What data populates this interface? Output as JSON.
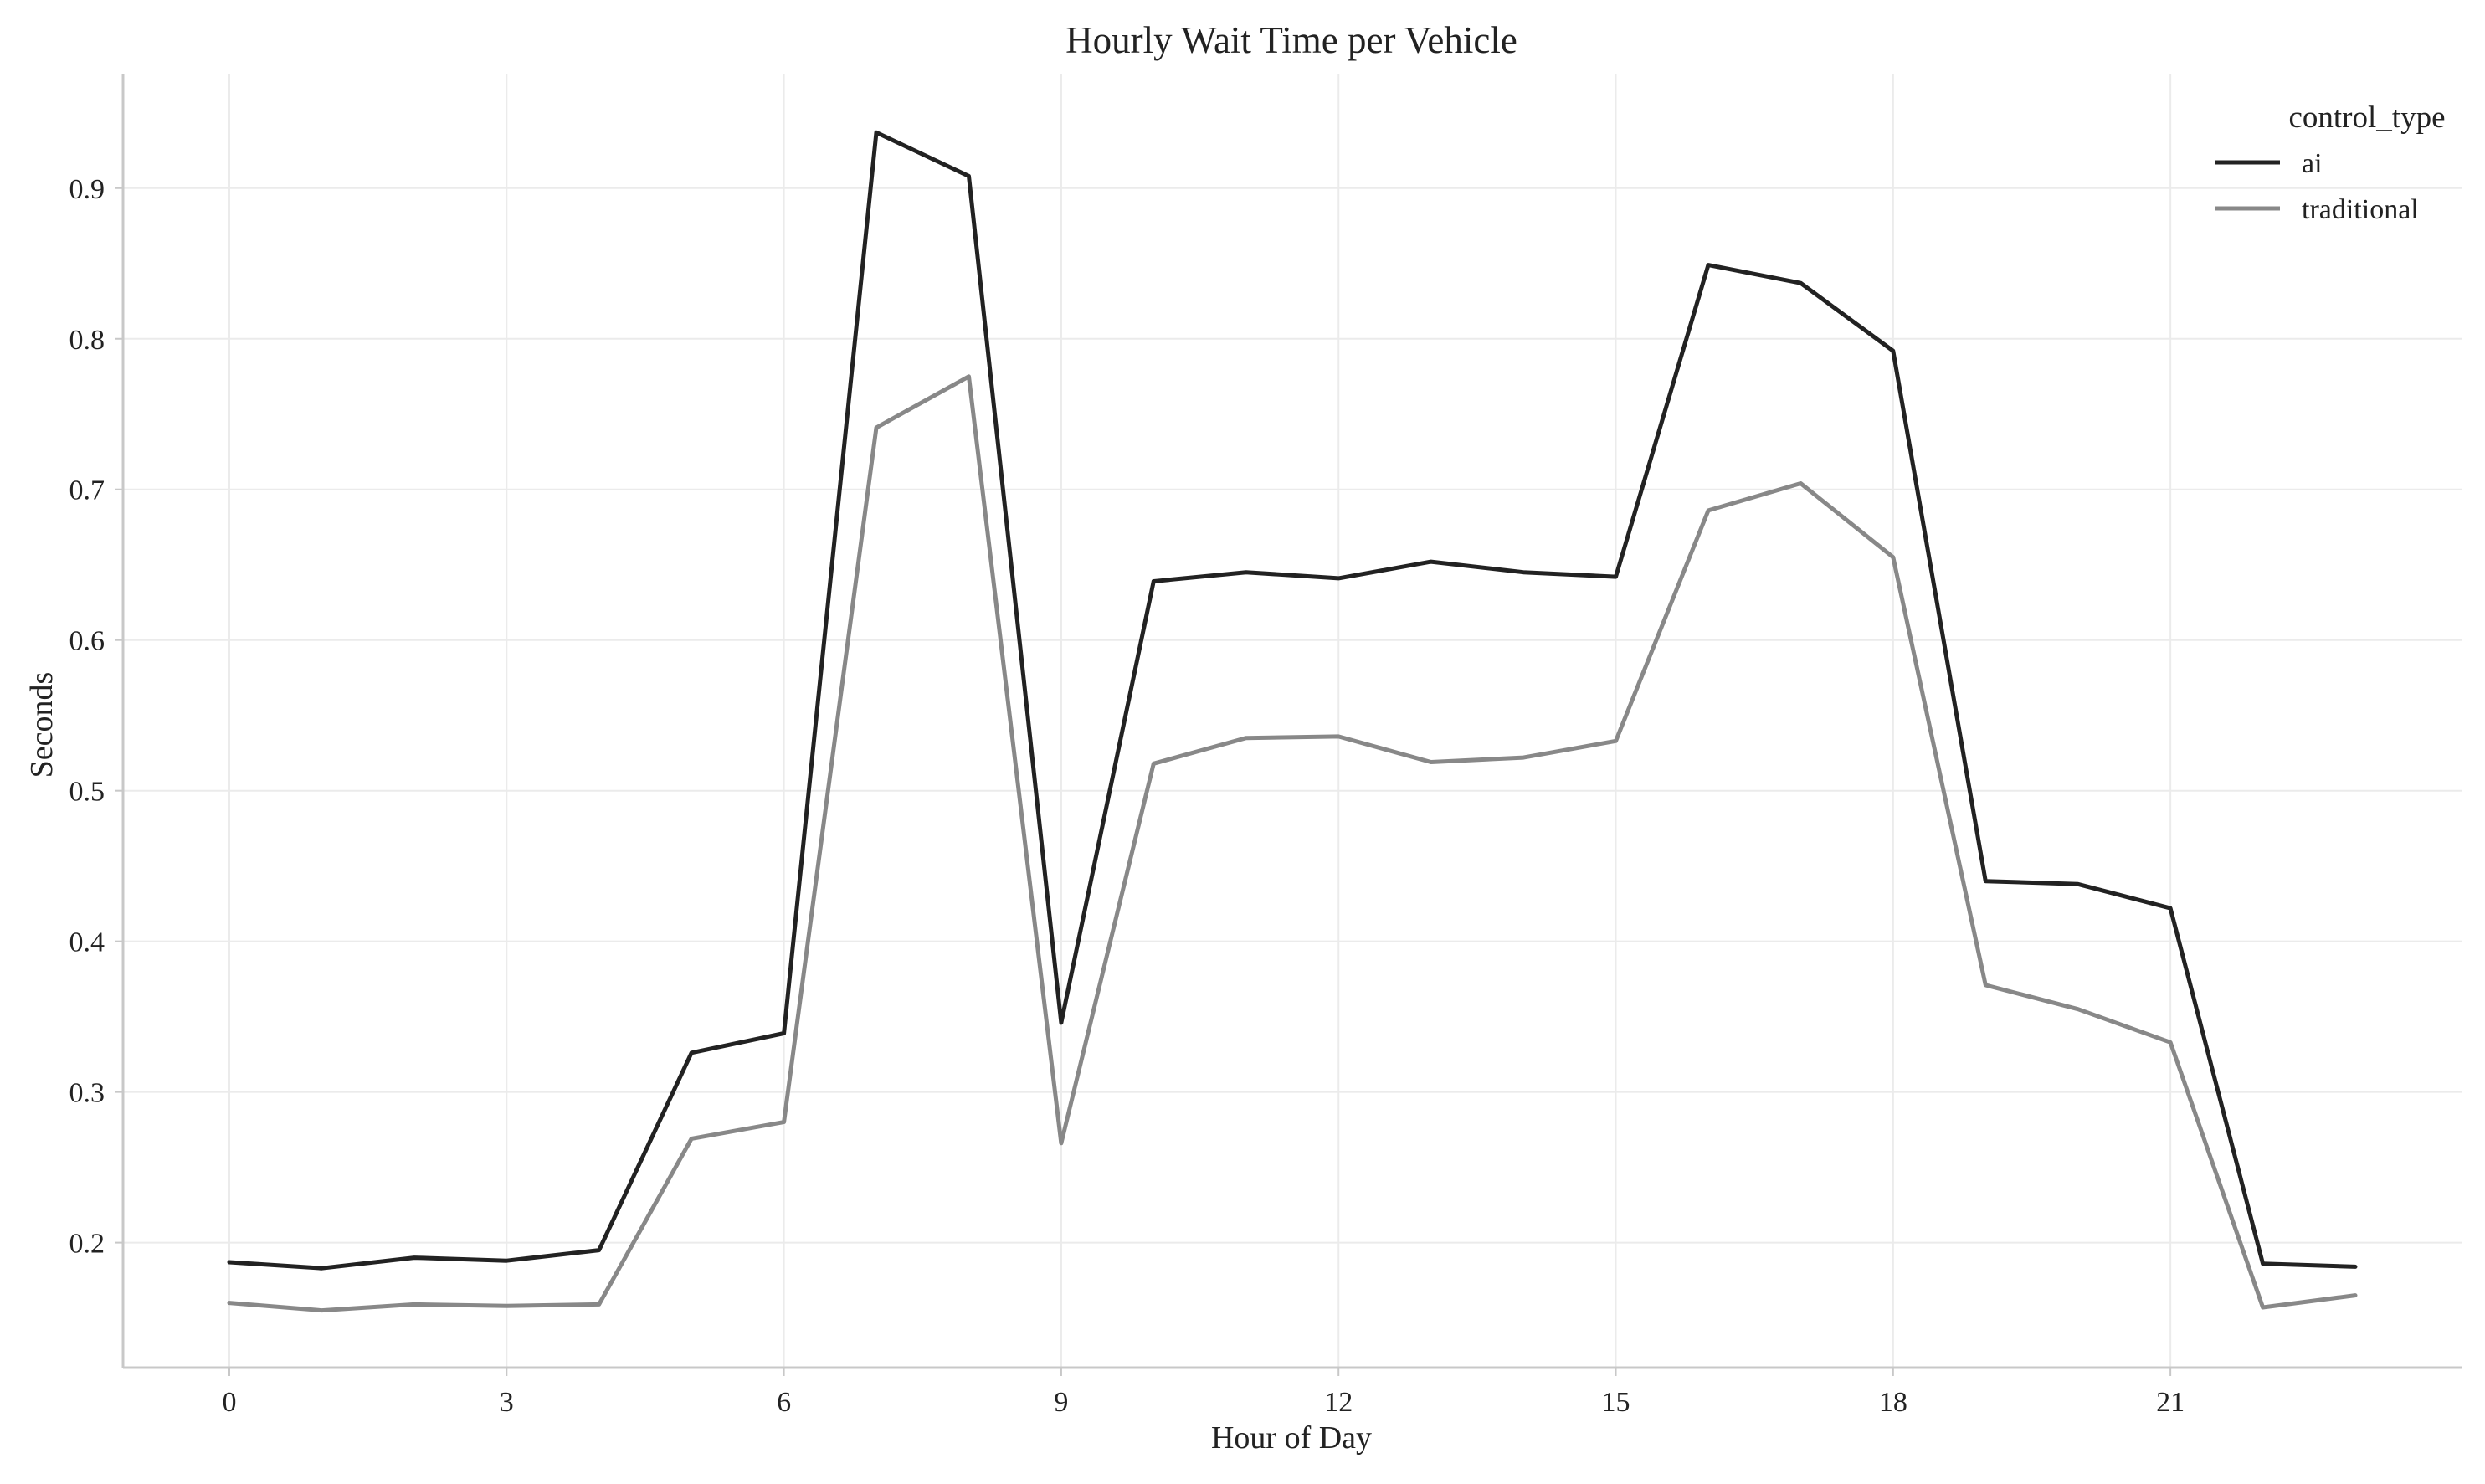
{
  "chart_data": {
    "type": "line",
    "title": "Hourly Wait Time per Vehicle",
    "xlabel": "Hour of Day",
    "ylabel": "Seconds",
    "x": [
      0,
      1,
      2,
      3,
      4,
      5,
      6,
      7,
      8,
      9,
      10,
      11,
      12,
      13,
      14,
      15,
      16,
      17,
      18,
      19,
      20,
      21,
      22,
      23
    ],
    "xticks": [
      0,
      3,
      6,
      9,
      12,
      15,
      18,
      21
    ],
    "xlim": [
      -1.15,
      24.15
    ],
    "yticks": [
      0.2,
      0.3,
      0.4,
      0.5,
      0.6,
      0.7,
      0.8,
      0.9
    ],
    "ylim": [
      0.117,
      0.976
    ],
    "grid": true,
    "legend": {
      "title": "control_type",
      "placement": "top-right"
    },
    "series": [
      {
        "name": "ai",
        "color": "#222222",
        "values": [
          0.187,
          0.183,
          0.19,
          0.188,
          0.195,
          0.326,
          0.339,
          0.937,
          0.908,
          0.346,
          0.639,
          0.645,
          0.641,
          0.652,
          0.645,
          0.642,
          0.849,
          0.837,
          0.792,
          0.44,
          0.438,
          0.422,
          0.186,
          0.184
        ]
      },
      {
        "name": "traditional",
        "color": "#888888",
        "values": [
          0.16,
          0.155,
          0.159,
          0.158,
          0.159,
          0.269,
          0.28,
          0.741,
          0.775,
          0.266,
          0.518,
          0.535,
          0.536,
          0.519,
          0.522,
          0.533,
          0.686,
          0.704,
          0.655,
          0.371,
          0.355,
          0.333,
          0.157,
          0.165
        ]
      }
    ]
  }
}
